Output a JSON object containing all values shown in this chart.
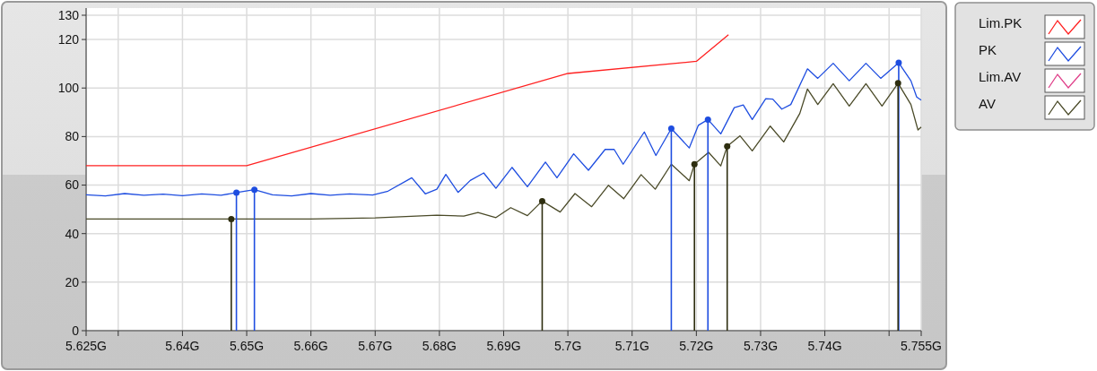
{
  "chart_data": {
    "type": "line",
    "xlim": [
      5.625,
      5.755
    ],
    "xticks": [
      {
        "value": 5.625,
        "label": "5.625G"
      },
      {
        "value": 5.63,
        "label": null
      },
      {
        "value": 5.64,
        "label": "5.64G"
      },
      {
        "value": 5.65,
        "label": "5.65G"
      },
      {
        "value": 5.66,
        "label": "5.66G"
      },
      {
        "value": 5.67,
        "label": "5.67G"
      },
      {
        "value": 5.68,
        "label": "5.68G"
      },
      {
        "value": 5.69,
        "label": "5.69G"
      },
      {
        "value": 5.7,
        "label": "5.7G"
      },
      {
        "value": 5.71,
        "label": "5.71G"
      },
      {
        "value": 5.72,
        "label": "5.72G"
      },
      {
        "value": 5.73,
        "label": "5.73G"
      },
      {
        "value": 5.74,
        "label": "5.74G"
      },
      {
        "value": 5.75,
        "label": null
      },
      {
        "value": 5.755,
        "label": "5.755G"
      }
    ],
    "ylim": [
      0,
      130
    ],
    "yticks": [
      0,
      20,
      40,
      60,
      80,
      100,
      120,
      130
    ],
    "grid": true,
    "legend": "right",
    "series": [
      {
        "name": "Lim.PK",
        "color": "#ff2020",
        "x": [
          5.625,
          5.65,
          5.7,
          5.72,
          5.725
        ],
        "values": [
          68,
          68,
          106,
          111,
          122
        ]
      },
      {
        "name": "PK",
        "color": "#1e4de0",
        "x": [
          5.625,
          5.628,
          5.631,
          5.634,
          5.637,
          5.64,
          5.643,
          5.646,
          5.6484,
          5.6512,
          5.654,
          5.657,
          5.66,
          5.663,
          5.666,
          5.6696,
          5.672,
          5.6757,
          5.6778,
          5.6796,
          5.681,
          5.6829,
          5.6848,
          5.6869,
          5.6888,
          5.6913,
          5.6937,
          5.6965,
          5.6983,
          5.7009,
          5.7032,
          5.7058,
          5.7072,
          5.7086,
          5.7119,
          5.7137,
          5.7161,
          5.7189,
          5.7203,
          5.7218,
          5.7238,
          5.7259,
          5.7273,
          5.7287,
          5.7308,
          5.7319,
          5.7333,
          5.7347,
          5.7373,
          5.7389,
          5.7413,
          5.7438,
          5.7464,
          5.7487,
          5.7515,
          5.7534,
          5.7543,
          5.755
        ],
        "values": [
          56,
          55.5,
          56.5,
          55.8,
          56.3,
          55.6,
          56.4,
          55.8,
          56.9,
          58.1,
          56,
          55.5,
          56.5,
          55.8,
          56.4,
          55.9,
          57.5,
          63,
          56.4,
          58.3,
          64.4,
          57,
          61.9,
          65,
          58.7,
          67.3,
          59.3,
          69.5,
          63,
          72.9,
          66.1,
          74.7,
          74.7,
          68.6,
          81.9,
          72.2,
          83.3,
          75.3,
          84.6,
          87,
          81.1,
          91.9,
          93,
          87,
          95.6,
          95.4,
          91.3,
          93.2,
          107.9,
          104,
          110.2,
          103,
          110.2,
          104,
          110.4,
          103,
          96.3,
          95
        ]
      },
      {
        "name": "Lim.AV",
        "color": "#e0408a"
      },
      {
        "name": "AV",
        "color": "#4a4a28",
        "x": [
          5.625,
          5.6476,
          5.66,
          5.67,
          5.6796,
          5.6838,
          5.686,
          5.6888,
          5.6911,
          5.6937,
          5.696,
          5.6988,
          5.7011,
          5.7037,
          5.7063,
          5.7087,
          5.7114,
          5.7136,
          5.7161,
          5.7189,
          5.7197,
          5.7219,
          5.7238,
          5.7248,
          5.7268,
          5.7287,
          5.7315,
          5.7336,
          5.7361,
          5.7373,
          5.7389,
          5.7413,
          5.7438,
          5.7464,
          5.7489,
          5.7514,
          5.7534,
          5.7545,
          5.755
        ],
        "values": [
          46,
          46,
          46,
          46.5,
          47.6,
          47.2,
          48.7,
          46.6,
          50.7,
          47.4,
          53.4,
          48.9,
          56.5,
          51.1,
          59.9,
          54.4,
          64.3,
          58.3,
          68.6,
          61.8,
          68.6,
          73.5,
          67.9,
          76,
          80.3,
          74.1,
          84.3,
          77.8,
          89.5,
          99.6,
          93.2,
          101.8,
          92.6,
          101.8,
          92.6,
          102,
          93.2,
          82.7,
          83.9
        ]
      },
      {
        "type": "lollipop",
        "color": "#1e4de0",
        "marker": "circle",
        "x": [
          5.6484,
          5.6512,
          5.7161,
          5.7218,
          5.7515
        ],
        "values": [
          56.9,
          58.1,
          83.3,
          87,
          110.4
        ]
      },
      {
        "type": "lollipop",
        "color": "#2e2e10",
        "marker": "circle",
        "x": [
          5.6476,
          5.696,
          5.7197,
          5.7248,
          5.7514
        ],
        "values": [
          46,
          53.4,
          68.6,
          76,
          102
        ]
      }
    ]
  }
}
